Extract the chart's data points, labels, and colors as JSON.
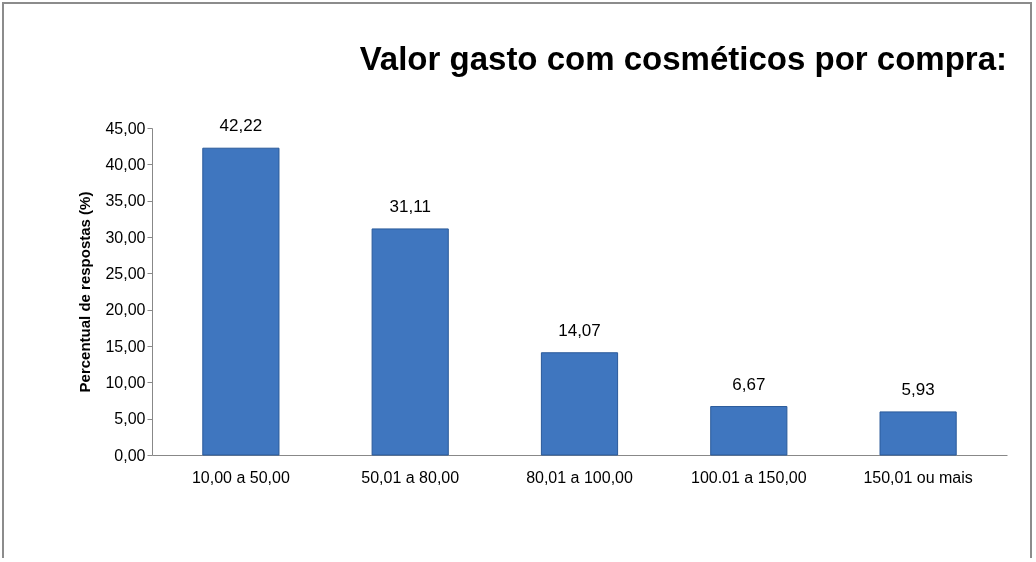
{
  "chart_data": {
    "type": "bar",
    "title": "Valor gasto com cosméticos por compra:",
    "ylabel": "Percentual de respostas (%)",
    "categories": [
      "10,00 a 50,00",
      "50,01 a 80,00",
      "80,01 a 100,00",
      "100.01 a 150,00",
      "150,01 ou mais"
    ],
    "values": [
      42.22,
      31.11,
      14.07,
      6.67,
      5.93
    ],
    "value_labels": [
      "42,22",
      "31,11",
      "14,07",
      "6,67",
      "5,93"
    ],
    "color": "#3f76bf",
    "ylim": [
      0,
      45
    ],
    "yticks": [
      {
        "value": 0,
        "label": "0,00"
      },
      {
        "value": 5,
        "label": "5,00"
      },
      {
        "value": 10,
        "label": "10,00"
      },
      {
        "value": 15,
        "label": "15,00"
      },
      {
        "value": 20,
        "label": "20,00"
      },
      {
        "value": 25,
        "label": "25,00"
      },
      {
        "value": 30,
        "label": "30,00"
      },
      {
        "value": 35,
        "label": "35,00"
      },
      {
        "value": 40,
        "label": "40,00"
      },
      {
        "value": 45,
        "label": "45,00"
      }
    ],
    "grid": false
  }
}
